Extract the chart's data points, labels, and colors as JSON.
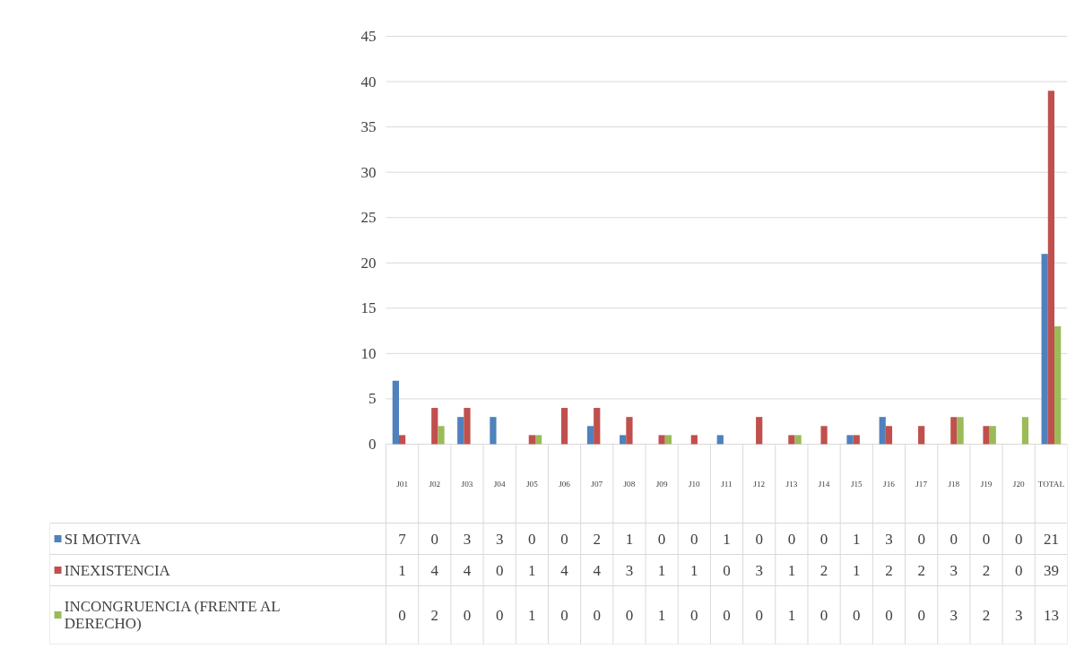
{
  "chart_data": {
    "type": "bar",
    "categories": [
      "J01",
      "J02",
      "J03",
      "J04",
      "J05",
      "J06",
      "J07",
      "J08",
      "J09",
      "J10",
      "J11",
      "J12",
      "J13",
      "J14",
      "J15",
      "J16",
      "J17",
      "J18",
      "J19",
      "J20",
      "TOTAL"
    ],
    "series": [
      {
        "name": "SI MOTIVA",
        "color": "#4f81bd",
        "values": [
          7,
          0,
          3,
          3,
          0,
          0,
          2,
          1,
          0,
          0,
          1,
          0,
          0,
          0,
          1,
          3,
          0,
          0,
          0,
          0,
          21
        ]
      },
      {
        "name": "INEXISTENCIA",
        "color": "#c0504d",
        "values": [
          1,
          4,
          4,
          0,
          1,
          4,
          4,
          3,
          1,
          1,
          0,
          3,
          1,
          2,
          1,
          2,
          2,
          3,
          2,
          0,
          39
        ]
      },
      {
        "name": "INCONGRUENCIA (FRENTE AL DERECHO)",
        "color": "#9bbb59",
        "values": [
          0,
          2,
          0,
          0,
          1,
          0,
          0,
          0,
          1,
          0,
          0,
          0,
          1,
          0,
          0,
          0,
          0,
          3,
          2,
          3,
          13
        ]
      }
    ],
    "ylim": [
      0,
      45
    ],
    "yticks": [
      0,
      5,
      10,
      15,
      20,
      25,
      30,
      35,
      40,
      45
    ],
    "grid": "y",
    "legend": "left",
    "data_labels": true
  }
}
